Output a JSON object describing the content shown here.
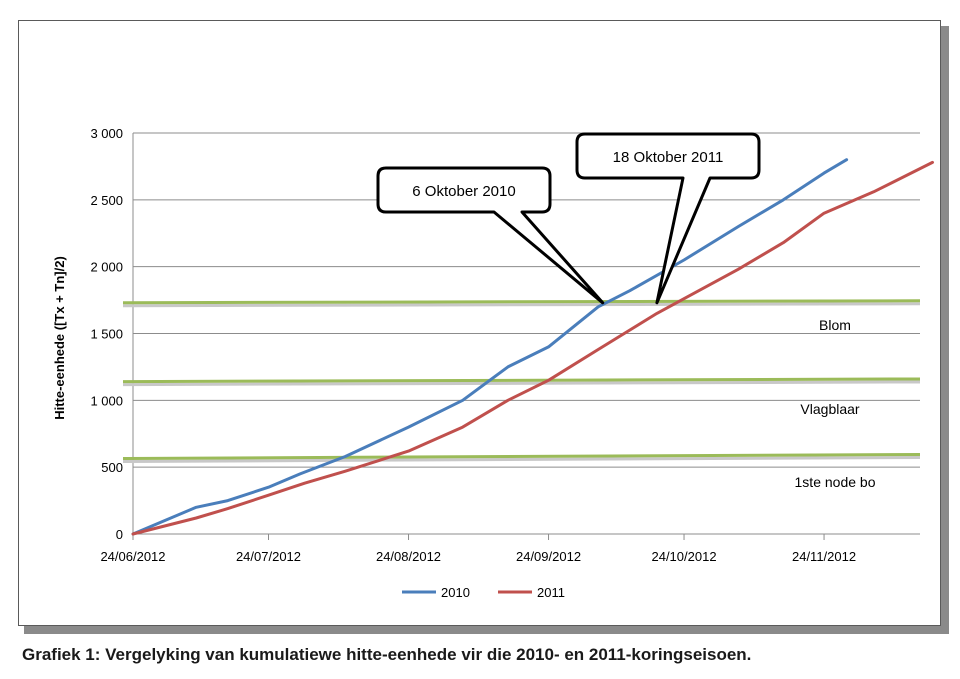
{
  "caption": "Grafiek 1: Vergelyking van kumulatiewe hitte-eenhede vir die 2010- en 2011-koringseisoen.",
  "chart_data": {
    "type": "line",
    "ylabel": "Hitte-eenhede ([Tx + Tn]/2)",
    "xlabel": "",
    "title": "",
    "x_tick_labels": [
      "24/06/2012",
      "24/07/2012",
      "24/08/2012",
      "24/09/2012",
      "24/10/2012",
      "24/11/2012"
    ],
    "y_tick_labels": [
      "0",
      "500",
      "1 000",
      "1 500",
      "2 000",
      "2 500",
      "3 000"
    ],
    "ylim": [
      0,
      3000
    ],
    "x_days_range": [
      0,
      177
    ],
    "grid": "horizontal",
    "legend_position": "bottom",
    "series": [
      {
        "name": "2010",
        "color": "#4a7ebb",
        "x": [
          "24/06/2012",
          "01/07/2012",
          "08/07/2012",
          "15/07/2012",
          "24/07/2012",
          "31/07/2012",
          "10/08/2012",
          "24/08/2012",
          "05/09/2012",
          "15/09/2012",
          "24/09/2012",
          "05/10/2012",
          "12/10/2012",
          "24/10/2012",
          "05/11/2012",
          "15/11/2012",
          "24/11/2012",
          "29/11/2012"
        ],
        "values": [
          0,
          100,
          200,
          250,
          350,
          450,
          580,
          800,
          1000,
          1250,
          1400,
          1700,
          1820,
          2050,
          2300,
          2500,
          2700,
          2800
        ]
      },
      {
        "name": "2011",
        "color": "#c0504d",
        "x": [
          "24/06/2012",
          "01/07/2012",
          "08/07/2012",
          "15/07/2012",
          "24/07/2012",
          "01/08/2012",
          "10/08/2012",
          "24/08/2012",
          "05/09/2012",
          "15/09/2012",
          "24/09/2012",
          "05/10/2012",
          "18/10/2012",
          "24/10/2012",
          "05/11/2012",
          "15/11/2012",
          "24/11/2012",
          "05/12/2012",
          "18/12/2012"
        ],
        "values": [
          0,
          60,
          120,
          190,
          290,
          380,
          470,
          620,
          800,
          1000,
          1150,
          1380,
          1650,
          1760,
          1980,
          2180,
          2400,
          2560,
          2780
        ]
      }
    ],
    "reference_lines": [
      {
        "label": "1ste node bo",
        "y_start": 565,
        "y_end": 595,
        "color": "#9bbb59"
      },
      {
        "label": "Vlagblaar",
        "y_start": 1140,
        "y_end": 1160,
        "color": "#9bbb59"
      },
      {
        "label": "Blom",
        "y_start": 1730,
        "y_end": 1745,
        "color": "#9bbb59"
      }
    ],
    "annotations": [
      {
        "text": "6 Oktober 2010",
        "x": "06/10/2012",
        "y": 1730
      },
      {
        "text": "18 Oktober 2011",
        "x": "18/10/2012",
        "y": 1730
      }
    ]
  }
}
